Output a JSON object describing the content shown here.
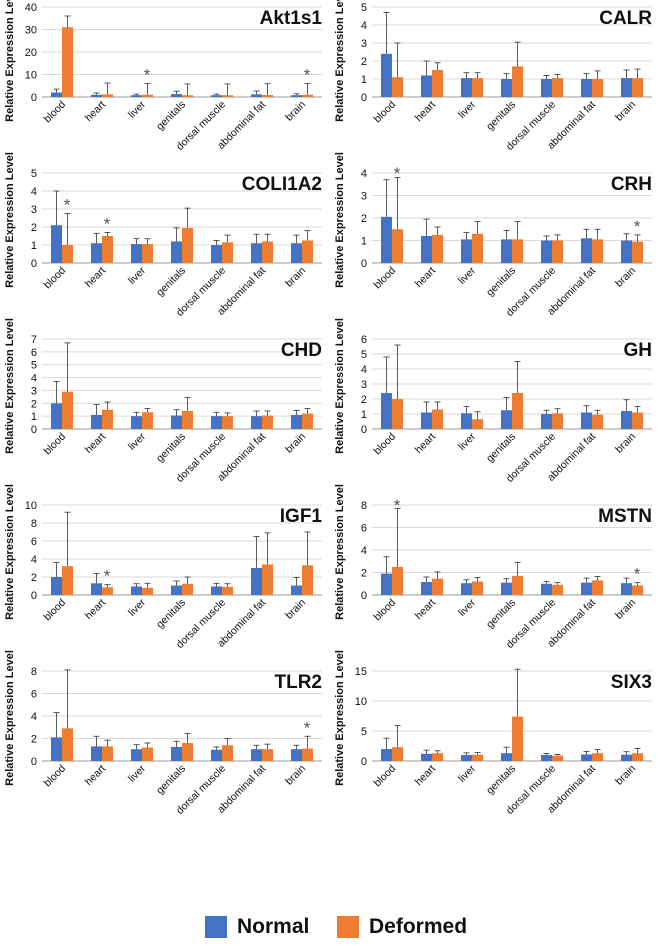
{
  "legend": {
    "normal_label": "Normal",
    "deformed_label": "Deformed",
    "normal_color": "#4472C4",
    "deformed_color": "#ED7D31"
  },
  "chart_data": [
    {
      "type": "bar",
      "title": "Akt1s1",
      "ylabel": "Relative Expression Level",
      "ylim": [
        0,
        40
      ],
      "yticks": [
        0,
        10,
        20,
        30,
        40
      ],
      "categories": [
        "blood",
        "heart",
        "liver",
        "genitals",
        "dorsal muscle",
        "abdominal fat",
        "brain"
      ],
      "series": [
        {
          "name": "Normal",
          "values": [
            2,
            1,
            0.8,
            1.3,
            0.8,
            1.2,
            0.8
          ],
          "errors": [
            1.5,
            0.8,
            0.5,
            1.3,
            0.5,
            1.5,
            0.6
          ]
        },
        {
          "name": "Deformed",
          "values": [
            31,
            1.2,
            1,
            0.8,
            0.8,
            0.9,
            1
          ],
          "errors": [
            5,
            5,
            5,
            5,
            5,
            5,
            5
          ]
        }
      ],
      "significance": [
        {
          "category": "liver",
          "label": "*"
        },
        {
          "category": "brain",
          "label": "*"
        }
      ]
    },
    {
      "type": "bar",
      "title": "CALR",
      "ylabel": "Relative Expression Level",
      "ylim": [
        0,
        5
      ],
      "yticks": [
        0,
        1,
        2,
        3,
        4,
        5
      ],
      "categories": [
        "blood",
        "heart",
        "liver",
        "genitals",
        "dorsal muscle",
        "abdominal fat",
        "brain"
      ],
      "series": [
        {
          "name": "Normal",
          "values": [
            2.4,
            1.2,
            1.05,
            1,
            1,
            1,
            1.05
          ],
          "errors": [
            2.3,
            0.8,
            0.3,
            0.3,
            0.2,
            0.3,
            0.45
          ]
        },
        {
          "name": "Deformed",
          "values": [
            1.1,
            1.5,
            1.05,
            1.7,
            1.05,
            1,
            1.05
          ],
          "errors": [
            1.9,
            0.4,
            0.3,
            1.35,
            0.2,
            0.45,
            0.5
          ]
        }
      ],
      "significance": []
    },
    {
      "type": "bar",
      "title": "COLI1A2",
      "ylabel": "Relative Expression Level",
      "ylim": [
        0,
        5
      ],
      "yticks": [
        0,
        1,
        2,
        3,
        4,
        5
      ],
      "categories": [
        "blood",
        "heart",
        "liver",
        "genitals",
        "dorsal muscle",
        "abdominal fat",
        "brain"
      ],
      "series": [
        {
          "name": "Normal",
          "values": [
            2.1,
            1.1,
            1.05,
            1.2,
            1,
            1.1,
            1.1
          ],
          "errors": [
            1.9,
            0.55,
            0.3,
            0.75,
            0.25,
            0.5,
            0.45
          ]
        },
        {
          "name": "Deformed",
          "values": [
            1,
            1.5,
            1.05,
            1.95,
            1.15,
            1.2,
            1.25
          ],
          "errors": [
            1.75,
            0.2,
            0.3,
            1.1,
            0.4,
            0.4,
            0.55
          ]
        }
      ],
      "significance": [
        {
          "category": "blood",
          "label": "*"
        },
        {
          "category": "heart",
          "label": "*"
        }
      ]
    },
    {
      "type": "bar",
      "title": "CRH",
      "ylabel": "Relative Expression Level",
      "ylim": [
        0,
        4
      ],
      "yticks": [
        0,
        1,
        2,
        3,
        4
      ],
      "categories": [
        "blood",
        "heart",
        "liver",
        "genitals",
        "dorsal muscle",
        "abdominal fat",
        "brain"
      ],
      "series": [
        {
          "name": "Normal",
          "values": [
            2.05,
            1.2,
            1.05,
            1.05,
            1,
            1.1,
            1
          ],
          "errors": [
            1.65,
            0.75,
            0.3,
            0.4,
            0.2,
            0.4,
            0.3
          ]
        },
        {
          "name": "Deformed",
          "values": [
            1.5,
            1.25,
            1.3,
            1.05,
            1,
            1.05,
            0.95
          ],
          "errors": [
            2.3,
            0.35,
            0.55,
            0.8,
            0.25,
            0.45,
            0.3
          ]
        }
      ],
      "significance": [
        {
          "category": "blood",
          "label": "*"
        },
        {
          "category": "brain",
          "label": "*"
        }
      ]
    },
    {
      "type": "bar",
      "title": "CHD",
      "ylabel": "Relative Expression Level",
      "ylim": [
        0,
        7
      ],
      "yticks": [
        0,
        1,
        2,
        3,
        4,
        5,
        6,
        7
      ],
      "categories": [
        "blood",
        "heart",
        "liver",
        "genitals",
        "dorsal muscle",
        "abdominal fat",
        "brain"
      ],
      "series": [
        {
          "name": "Normal",
          "values": [
            2,
            1.1,
            1,
            1.05,
            1,
            1,
            1.1
          ],
          "errors": [
            1.7,
            0.8,
            0.3,
            0.45,
            0.3,
            0.4,
            0.35
          ]
        },
        {
          "name": "Deformed",
          "values": [
            2.9,
            1.5,
            1.3,
            1.4,
            1,
            1.05,
            1.2
          ],
          "errors": [
            3.8,
            0.6,
            0.3,
            1.05,
            0.25,
            0.35,
            0.4
          ]
        }
      ],
      "significance": []
    },
    {
      "type": "bar",
      "title": "GH",
      "ylabel": "Relative Expression Level",
      "ylim": [
        0,
        6
      ],
      "yticks": [
        0,
        1,
        2,
        3,
        4,
        5,
        6
      ],
      "categories": [
        "blood",
        "heart",
        "liver",
        "genitals",
        "dorsal muscle",
        "abdominal fat",
        "brain"
      ],
      "series": [
        {
          "name": "Normal",
          "values": [
            2.4,
            1.1,
            1.05,
            1.25,
            1,
            1.1,
            1.2
          ],
          "errors": [
            2.4,
            0.7,
            0.45,
            0.85,
            0.25,
            0.45,
            0.75
          ]
        },
        {
          "name": "Deformed",
          "values": [
            2,
            1.3,
            0.65,
            2.4,
            1.05,
            0.95,
            1.1
          ],
          "errors": [
            3.6,
            0.5,
            0.5,
            2.1,
            0.3,
            0.3,
            0.4
          ]
        }
      ],
      "significance": []
    },
    {
      "type": "bar",
      "title": "IGF1",
      "ylabel": "Relative Expression Level",
      "ylim": [
        0,
        10
      ],
      "yticks": [
        0,
        2,
        4,
        6,
        8,
        10
      ],
      "categories": [
        "blood",
        "heart",
        "liver",
        "genitals",
        "dorsal muscle",
        "abdominal fat",
        "brain"
      ],
      "series": [
        {
          "name": "Normal",
          "values": [
            2,
            1.3,
            0.95,
            1.05,
            0.95,
            3,
            1.05
          ],
          "errors": [
            1.6,
            1.1,
            0.3,
            0.5,
            0.35,
            3.5,
            0.9
          ]
        },
        {
          "name": "Deformed",
          "values": [
            3.2,
            0.85,
            0.8,
            1.25,
            0.9,
            3.4,
            3.3
          ],
          "errors": [
            6,
            0.3,
            0.5,
            0.75,
            0.35,
            3.5,
            3.7
          ]
        }
      ],
      "significance": [
        {
          "category": "heart",
          "label": "*"
        }
      ]
    },
    {
      "type": "bar",
      "title": "MSTN",
      "ylabel": "Relative Expression Level",
      "ylim": [
        0,
        8
      ],
      "yticks": [
        0,
        2,
        4,
        6,
        8
      ],
      "categories": [
        "blood",
        "heart",
        "liver",
        "genitals",
        "dorsal muscle",
        "abdominal fat",
        "brain"
      ],
      "series": [
        {
          "name": "Normal",
          "values": [
            1.9,
            1.15,
            1.05,
            1.1,
            1,
            1.1,
            1.05
          ],
          "errors": [
            1.5,
            0.45,
            0.3,
            0.35,
            0.2,
            0.4,
            0.45
          ]
        },
        {
          "name": "Deformed",
          "values": [
            2.5,
            1.45,
            1.2,
            1.7,
            0.9,
            1.3,
            0.85
          ],
          "errors": [
            5.2,
            0.6,
            0.35,
            1.2,
            0.2,
            0.35,
            0.25
          ]
        }
      ],
      "significance": [
        {
          "category": "blood",
          "label": "*"
        },
        {
          "category": "brain",
          "label": "*"
        }
      ]
    },
    {
      "type": "bar",
      "title": "TLR2",
      "ylabel": "Relative Expression Level",
      "ylim": [
        0,
        8
      ],
      "yticks": [
        0,
        2,
        4,
        6,
        8
      ],
      "categories": [
        "blood",
        "heart",
        "liver",
        "genitals",
        "dorsal muscle",
        "abdominal fat",
        "brain"
      ],
      "series": [
        {
          "name": "Normal",
          "values": [
            2.1,
            1.3,
            1.05,
            1.25,
            1,
            1.05,
            1.05
          ],
          "errors": [
            2.2,
            0.9,
            0.4,
            0.5,
            0.25,
            0.35,
            0.35
          ]
        },
        {
          "name": "Deformed",
          "values": [
            2.9,
            1.3,
            1.2,
            1.6,
            1.4,
            1.05,
            1.1
          ],
          "errors": [
            5.2,
            0.55,
            0.4,
            0.85,
            0.6,
            0.45,
            1.1
          ]
        }
      ],
      "significance": [
        {
          "category": "brain",
          "label": "*"
        }
      ]
    },
    {
      "type": "bar",
      "title": "SIX3",
      "ylabel": "Relative Expression Level",
      "ylim": [
        0,
        15
      ],
      "yticks": [
        0,
        5,
        10,
        15
      ],
      "categories": [
        "blood",
        "heart",
        "liver",
        "genitals",
        "dorsal muscle",
        "abdominal fat",
        "brain"
      ],
      "series": [
        {
          "name": "Normal",
          "values": [
            2,
            1.2,
            1,
            1.3,
            1,
            1.1,
            1.05
          ],
          "errors": [
            1.8,
            0.6,
            0.35,
            1,
            0.25,
            0.5,
            0.5
          ]
        },
        {
          "name": "Deformed",
          "values": [
            2.3,
            1.3,
            1.05,
            7.4,
            0.9,
            1.3,
            1.3
          ],
          "errors": [
            3.6,
            0.4,
            0.35,
            8.4,
            0.2,
            0.6,
            0.8
          ]
        }
      ],
      "significance": []
    }
  ]
}
